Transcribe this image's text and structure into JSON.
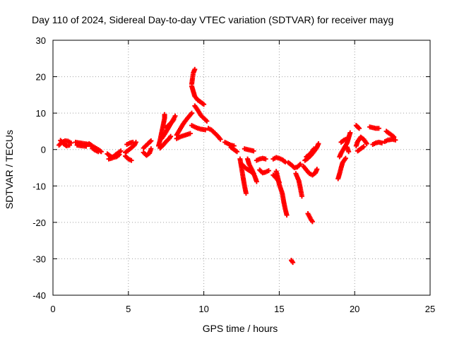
{
  "chart_data": {
    "type": "scatter",
    "title": "Day 110 of 2024, Sidereal Day-to-day VTEC variation (SDTVAR) for receiver mayg",
    "xlabel": "GPS time / hours",
    "ylabel": "SDTVAR / TECUs",
    "xlim": [
      0,
      25
    ],
    "ylim": [
      -40,
      30
    ],
    "xticks": [
      0,
      5,
      10,
      15,
      20,
      25
    ],
    "yticks": [
      -40,
      -30,
      -20,
      -10,
      0,
      10,
      20,
      30
    ],
    "grid": true,
    "marker": "+",
    "color": "#ff0000",
    "series": [
      {
        "name": "SDTVAR",
        "segments": [
          [
            [
              0.4,
              1.2
            ],
            [
              0.6,
              2.0
            ],
            [
              0.8,
              2.4
            ],
            [
              1.0,
              2.3
            ],
            [
              1.2,
              1.8
            ]
          ],
          [
            [
              0.5,
              2.5
            ],
            [
              0.7,
              1.6
            ],
            [
              0.9,
              1.0
            ],
            [
              1.1,
              1.2
            ]
          ],
          [
            [
              1.5,
              2.0
            ],
            [
              1.8,
              1.8
            ],
            [
              2.1,
              1.6
            ],
            [
              2.4,
              1.4
            ]
          ],
          [
            [
              1.6,
              1.2
            ],
            [
              1.9,
              1.0
            ],
            [
              2.2,
              0.9
            ]
          ],
          [
            [
              2.4,
              1.6
            ],
            [
              2.6,
              1.0
            ],
            [
              2.8,
              0.5
            ],
            [
              3.0,
              0.0
            ],
            [
              3.2,
              -0.6
            ]
          ],
          [
            [
              2.6,
              0.4
            ],
            [
              2.8,
              -0.2
            ],
            [
              3.0,
              -0.6
            ]
          ],
          [
            [
              3.6,
              -1.2
            ],
            [
              3.8,
              -1.8
            ],
            [
              4.0,
              -2.2
            ],
            [
              4.2,
              -2.0
            ],
            [
              4.4,
              -1.4
            ]
          ],
          [
            [
              3.7,
              -2.6
            ],
            [
              3.9,
              -2.4
            ],
            [
              4.1,
              -1.6
            ],
            [
              4.3,
              -1.0
            ],
            [
              4.5,
              -0.4
            ]
          ],
          [
            [
              4.8,
              -0.8
            ],
            [
              5.0,
              -0.2
            ],
            [
              5.2,
              0.5
            ],
            [
              5.4,
              1.2
            ],
            [
              5.5,
              2.0
            ]
          ],
          [
            [
              4.8,
              -1.8
            ],
            [
              5.0,
              -2.6
            ],
            [
              5.2,
              -3.0
            ]
          ],
          [
            [
              4.9,
              1.4
            ],
            [
              5.1,
              1.8
            ],
            [
              5.3,
              2.0
            ]
          ],
          [
            [
              6.0,
              -0.8
            ],
            [
              6.2,
              -1.6
            ],
            [
              6.4,
              -1.0
            ],
            [
              6.5,
              0.2
            ]
          ],
          [
            [
              6.0,
              0.4
            ],
            [
              6.2,
              1.2
            ],
            [
              6.4,
              2.0
            ],
            [
              6.5,
              2.4
            ]
          ],
          [
            [
              7.0,
              1.0
            ],
            [
              7.1,
              2.6
            ],
            [
              7.2,
              4.6
            ],
            [
              7.3,
              6.6
            ],
            [
              7.4,
              8.6
            ],
            [
              7.4,
              9.6
            ]
          ],
          [
            [
              7.2,
              3.0
            ],
            [
              7.4,
              4.2
            ],
            [
              7.6,
              5.6
            ],
            [
              7.8,
              7.0
            ],
            [
              8.0,
              8.4
            ],
            [
              8.1,
              9.2
            ]
          ],
          [
            [
              7.1,
              0.4
            ],
            [
              7.3,
              1.2
            ],
            [
              7.5,
              2.2
            ],
            [
              7.7,
              3.0
            ],
            [
              7.8,
              3.6
            ]
          ],
          [
            [
              7.5,
              6.0
            ],
            [
              7.7,
              6.8
            ],
            [
              7.9,
              7.6
            ],
            [
              8.0,
              8.2
            ]
          ],
          [
            [
              8.2,
              4.0
            ],
            [
              8.4,
              5.4
            ],
            [
              8.6,
              6.8
            ],
            [
              8.8,
              8.0
            ],
            [
              9.0,
              9.0
            ],
            [
              9.2,
              10.0
            ]
          ],
          [
            [
              8.2,
              3.0
            ],
            [
              8.5,
              3.6
            ],
            [
              8.8,
              4.0
            ],
            [
              9.1,
              4.4
            ]
          ],
          [
            [
              9.2,
              18.0
            ],
            [
              9.25,
              19.6
            ],
            [
              9.3,
              21.0
            ],
            [
              9.4,
              22.0
            ]
          ],
          [
            [
              9.2,
              17.4
            ],
            [
              9.3,
              16.0
            ],
            [
              9.4,
              14.6
            ],
            [
              9.6,
              13.6
            ],
            [
              9.8,
              13.0
            ],
            [
              10.0,
              12.4
            ]
          ],
          [
            [
              9.4,
              12.0
            ],
            [
              9.6,
              10.8
            ],
            [
              9.8,
              9.4
            ],
            [
              10.0,
              8.6
            ],
            [
              10.2,
              7.8
            ]
          ],
          [
            [
              9.2,
              6.6
            ],
            [
              9.5,
              6.0
            ],
            [
              9.8,
              5.6
            ],
            [
              10.1,
              5.4
            ]
          ],
          [
            [
              10.3,
              5.8
            ],
            [
              10.5,
              5.4
            ],
            [
              10.7,
              4.6
            ],
            [
              10.9,
              3.8
            ],
            [
              11.1,
              2.8
            ]
          ],
          [
            [
              11.4,
              2.0
            ],
            [
              11.6,
              1.6
            ],
            [
              11.8,
              1.2
            ],
            [
              12.0,
              1.0
            ]
          ],
          [
            [
              11.8,
              0.6
            ],
            [
              12.0,
              0.0
            ],
            [
              12.2,
              -0.6
            ]
          ],
          [
            [
              12.4,
              -2.6
            ],
            [
              12.5,
              -5.0
            ],
            [
              12.6,
              -7.6
            ],
            [
              12.7,
              -10.0
            ],
            [
              12.8,
              -12.0
            ]
          ],
          [
            [
              12.7,
              0.2
            ],
            [
              12.9,
              0.0
            ],
            [
              13.1,
              -0.2
            ],
            [
              13.3,
              -0.4
            ]
          ],
          [
            [
              12.5,
              -4.0
            ],
            [
              12.8,
              -5.2
            ],
            [
              13.1,
              -6.0
            ],
            [
              13.3,
              -6.6
            ]
          ],
          [
            [
              12.9,
              -2.6
            ],
            [
              13.0,
              -4.0
            ],
            [
              13.2,
              -5.6
            ],
            [
              13.4,
              -7.6
            ],
            [
              13.5,
              -8.8
            ]
          ],
          [
            [
              13.5,
              -3.0
            ],
            [
              13.7,
              -2.6
            ],
            [
              13.9,
              -2.4
            ],
            [
              14.1,
              -2.6
            ]
          ],
          [
            [
              13.7,
              -5.6
            ],
            [
              13.9,
              -6.4
            ],
            [
              14.1,
              -6.2
            ],
            [
              14.3,
              -5.8
            ]
          ],
          [
            [
              14.6,
              -2.6
            ],
            [
              14.8,
              -2.2
            ],
            [
              15.0,
              -2.4
            ],
            [
              15.2,
              -2.8
            ],
            [
              15.4,
              -3.4
            ]
          ],
          [
            [
              14.8,
              -6.0
            ],
            [
              14.9,
              -7.6
            ],
            [
              15.0,
              -9.6
            ],
            [
              15.2,
              -12.0
            ],
            [
              15.3,
              -14.4
            ],
            [
              15.4,
              -16.4
            ],
            [
              15.5,
              -18.0
            ]
          ],
          [
            [
              14.6,
              -7.0
            ],
            [
              14.8,
              -7.8
            ],
            [
              15.0,
              -9.0
            ]
          ],
          [
            [
              15.6,
              -3.6
            ],
            [
              15.8,
              -4.2
            ],
            [
              16.0,
              -5.0
            ],
            [
              16.2,
              -4.8
            ],
            [
              16.4,
              -4.0
            ]
          ],
          [
            [
              16.1,
              -6.6
            ],
            [
              16.3,
              -8.6
            ],
            [
              16.4,
              -10.6
            ],
            [
              16.5,
              -12.8
            ]
          ],
          [
            [
              16.7,
              -3.0
            ],
            [
              16.9,
              -2.4
            ],
            [
              17.1,
              -1.6
            ],
            [
              17.3,
              -0.6
            ],
            [
              17.5,
              0.6
            ],
            [
              17.6,
              1.6
            ]
          ],
          [
            [
              16.6,
              -4.6
            ],
            [
              16.8,
              -5.6
            ],
            [
              17.0,
              -6.6
            ],
            [
              17.2,
              -7.0
            ],
            [
              17.4,
              -6.4
            ],
            [
              17.5,
              -5.4
            ]
          ],
          [
            [
              16.8,
              -2.0
            ],
            [
              17.0,
              -1.4
            ],
            [
              17.2,
              -0.4
            ],
            [
              17.3,
              0.2
            ]
          ],
          [
            [
              16.9,
              -17.6
            ],
            [
              17.0,
              -18.4
            ],
            [
              17.1,
              -19.2
            ],
            [
              17.2,
              -19.8
            ]
          ],
          [
            [
              15.8,
              -30.4
            ],
            [
              15.9,
              -31.0
            ]
          ],
          [
            [
              19.0,
              -2.0
            ],
            [
              19.1,
              -1.0
            ],
            [
              19.3,
              0.4
            ],
            [
              19.5,
              1.8
            ],
            [
              19.6,
              3.2
            ],
            [
              19.7,
              4.6
            ]
          ],
          [
            [
              18.9,
              -8.0
            ],
            [
              19.0,
              -6.6
            ],
            [
              19.1,
              -5.0
            ],
            [
              19.2,
              -3.6
            ],
            [
              19.4,
              -2.4
            ]
          ],
          [
            [
              19.1,
              2.0
            ],
            [
              19.3,
              2.6
            ],
            [
              19.5,
              3.0
            ]
          ],
          [
            [
              19.5,
              0.6
            ],
            [
              19.6,
              -0.6
            ]
          ],
          [
            [
              20.1,
              6.6
            ],
            [
              20.2,
              6.2
            ],
            [
              20.3,
              5.8
            ]
          ],
          [
            [
              20.1,
              1.0
            ],
            [
              20.2,
              2.2
            ],
            [
              20.4,
              3.4
            ],
            [
              20.6,
              2.8
            ],
            [
              20.8,
              1.6
            ]
          ],
          [
            [
              20.2,
              -0.4
            ],
            [
              20.4,
              0.2
            ],
            [
              20.6,
              0.8
            ]
          ],
          [
            [
              21.2,
              1.4
            ],
            [
              21.4,
              1.8
            ],
            [
              21.6,
              2.0
            ],
            [
              21.8,
              1.8
            ]
          ],
          [
            [
              21.0,
              6.2
            ],
            [
              21.2,
              6.0
            ],
            [
              21.4,
              5.8
            ],
            [
              21.6,
              5.8
            ]
          ],
          [
            [
              22.1,
              5.0
            ],
            [
              22.3,
              4.4
            ],
            [
              22.5,
              3.8
            ],
            [
              22.6,
              3.4
            ]
          ],
          [
            [
              22.0,
              2.2
            ],
            [
              22.2,
              2.6
            ],
            [
              22.5,
              2.8
            ],
            [
              22.7,
              2.6
            ]
          ]
        ]
      }
    ]
  }
}
